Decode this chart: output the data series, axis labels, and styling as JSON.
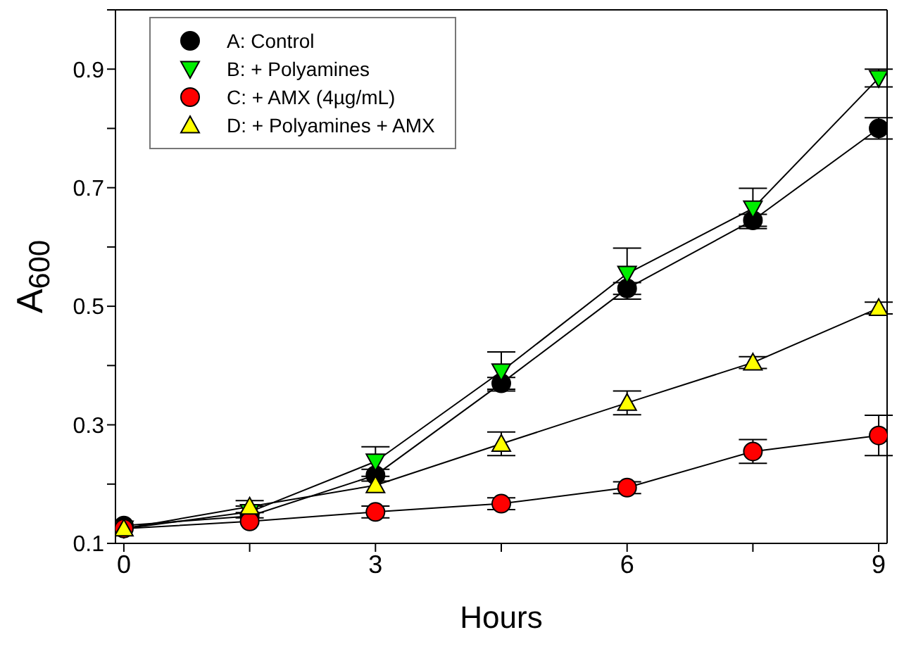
{
  "chart_data": {
    "type": "line",
    "xlabel": "Hours",
    "ylabel": "A$_{600}$",
    "x": [
      0,
      1.5,
      3,
      4.5,
      6,
      7.5,
      9
    ],
    "xlim": [
      -0.1,
      9.1
    ],
    "xticks": [
      0,
      {
        "value": 1.5,
        "label": null
      },
      3,
      {
        "value": 4.5,
        "label": null
      },
      6,
      {
        "value": 7.5,
        "label": null
      },
      9
    ],
    "ylim": [
      0.1,
      1.0
    ],
    "yticks": [
      0.1,
      {
        "value": 0.2,
        "label": null
      },
      0.3,
      {
        "value": 0.4,
        "label": null
      },
      0.5,
      {
        "value": 0.6,
        "label": null
      },
      0.7,
      {
        "value": 0.8,
        "label": null
      },
      0.9,
      {
        "value": 1.0,
        "label": null
      }
    ],
    "grid": false,
    "legend": "top left",
    "series": [
      {
        "name": "A: Control",
        "color": "#000000",
        "marker": "circle",
        "values": [
          0.13,
          0.146,
          0.215,
          0.37,
          0.53,
          0.645,
          0.8
        ],
        "errors": [
          null,
          null,
          0.01,
          0.01,
          0.01,
          0.01,
          0.018
        ]
      },
      {
        "name": "B: + Polyamines",
        "color": "#00ee00",
        "marker": "triangle-down",
        "values": [
          0.125,
          0.153,
          0.238,
          0.39,
          0.555,
          0.665,
          0.885
        ],
        "errors": [
          null,
          0.01,
          0.025,
          0.033,
          0.043,
          0.034,
          0.015
        ]
      },
      {
        "name": "C: + AMX (4µg/mL)",
        "color": "#ff0000",
        "marker": "circle",
        "values": [
          0.125,
          0.137,
          0.153,
          0.167,
          0.194,
          0.255,
          0.282
        ],
        "errors": [
          null,
          null,
          0.01,
          0.01,
          0.01,
          0.02,
          0.034
        ]
      },
      {
        "name": "D: + Polyamines + AMX",
        "color": "#ffff00",
        "marker": "triangle",
        "values": [
          0.125,
          0.162,
          0.198,
          0.268,
          0.337,
          0.405,
          0.497
        ],
        "errors": [
          null,
          0.01,
          null,
          0.02,
          0.02,
          0.01,
          0.01
        ]
      }
    ]
  }
}
